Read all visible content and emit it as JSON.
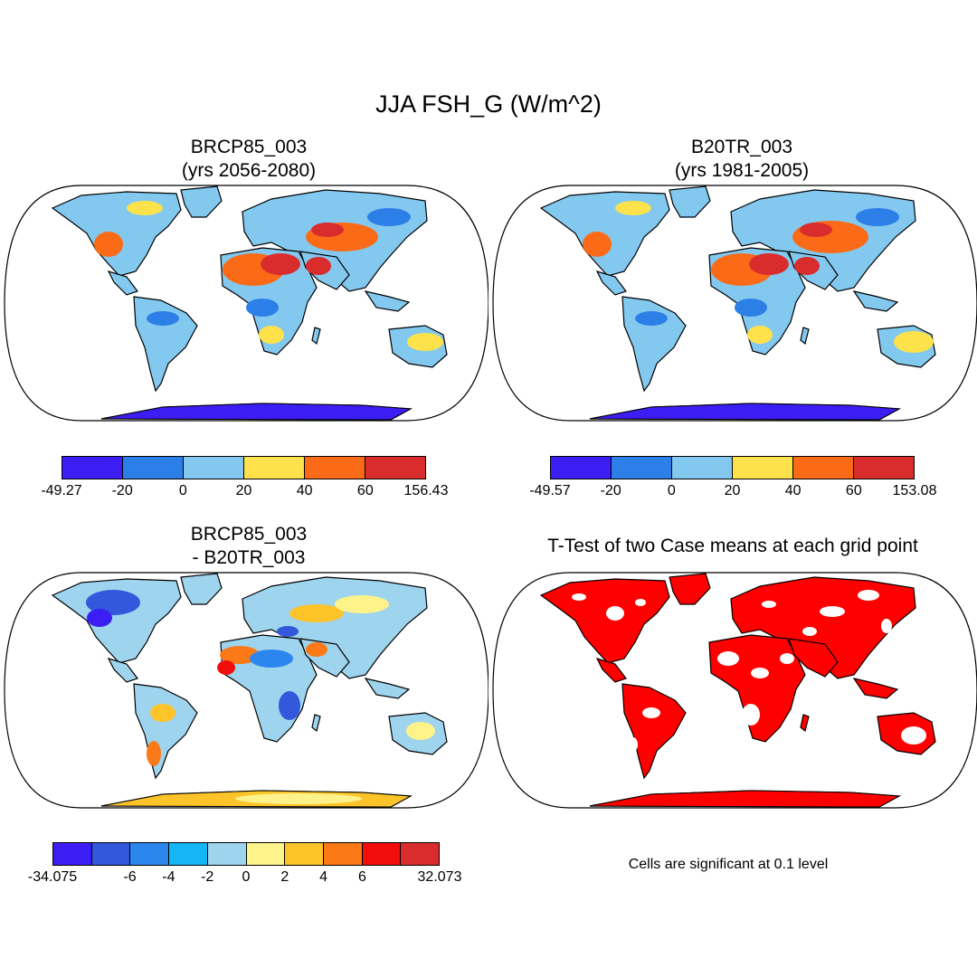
{
  "main_title": "JJA FSH_G (W/m^2)",
  "panels": {
    "top_left": {
      "title_line1": "BRCP85_003",
      "title_line2": "(yrs 2056-2080)",
      "colorbar": {
        "colors": [
          "#3c1ef5",
          "#2d7fe8",
          "#83c8ef",
          "#fde24c",
          "#fb6a17",
          "#d92c2c"
        ],
        "labels": [
          "-49.27",
          "-20",
          "0",
          "20",
          "40",
          "60",
          "156.43"
        ]
      }
    },
    "top_right": {
      "title_line1": "B20TR_003",
      "title_line2": "(yrs 1981-2005)",
      "colorbar": {
        "colors": [
          "#3c1ef5",
          "#2d7fe8",
          "#83c8ef",
          "#fde24c",
          "#fb6a17",
          "#d92c2c"
        ],
        "labels": [
          "-49.57",
          "-20",
          "0",
          "20",
          "40",
          "60",
          "153.08"
        ]
      }
    },
    "bottom_left": {
      "title_line1": "BRCP85_003",
      "title_line2": "- B20TR_003",
      "colorbar": {
        "colors": [
          "#3c1ef5",
          "#3358dc",
          "#2d86ee",
          "#14b6f3",
          "#9ed4ee",
          "#fef38a",
          "#fdc42a",
          "#fb7a17",
          "#f20d0d",
          "#d92c2c"
        ],
        "labels": [
          "-34.075",
          "",
          "-6",
          "-4",
          "-2",
          "0",
          "2",
          "4",
          "6",
          "",
          "32.073"
        ]
      }
    },
    "bottom_right": {
      "title": "T-Test of two Case means at each grid point",
      "note": "Cells are significant at 0.1 level",
      "color": "#ff0000"
    }
  }
}
